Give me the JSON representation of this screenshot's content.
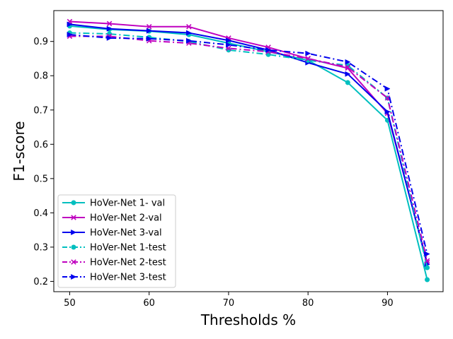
{
  "chart_data": {
    "type": "line",
    "title": "",
    "xlabel": "Thresholds %",
    "ylabel": "F1-score",
    "xlim": [
      48,
      97
    ],
    "ylim": [
      0.17,
      0.99
    ],
    "x_ticks": [
      50,
      60,
      70,
      80,
      90
    ],
    "y_ticks": [
      0.2,
      0.3,
      0.4,
      0.5,
      0.6,
      0.7,
      0.8,
      0.9
    ],
    "grid": false,
    "legend_position": "lower-left",
    "x": [
      50,
      55,
      60,
      65,
      70,
      75,
      80,
      85,
      90,
      95
    ],
    "series": [
      {
        "name": "HoVer-Net 1- val",
        "color": "#00bfbf",
        "marker": "circle",
        "linestyle": "solid",
        "values": [
          0.945,
          0.935,
          0.93,
          0.92,
          0.895,
          0.87,
          0.845,
          0.78,
          0.67,
          0.205
        ]
      },
      {
        "name": "HoVer-Net 2-val",
        "color": "#bf00bf",
        "marker": "x",
        "linestyle": "solid",
        "values": [
          0.958,
          0.952,
          0.943,
          0.943,
          0.91,
          0.883,
          0.85,
          0.822,
          0.69,
          0.255
        ]
      },
      {
        "name": "HoVer-Net 3-val",
        "color": "#0000ee",
        "marker": "triangle-right",
        "linestyle": "solid",
        "values": [
          0.95,
          0.937,
          0.931,
          0.925,
          0.903,
          0.875,
          0.838,
          0.805,
          0.695,
          0.25
        ]
      },
      {
        "name": "HoVer-Net 1-test",
        "color": "#00bfbf",
        "marker": "circle",
        "linestyle": "dashdot",
        "values": [
          0.925,
          0.922,
          0.912,
          0.9,
          0.875,
          0.862,
          0.845,
          0.83,
          0.735,
          0.24
        ]
      },
      {
        "name": "HoVer-Net 2-test",
        "color": "#bf00bf",
        "marker": "x",
        "linestyle": "dashdot",
        "values": [
          0.915,
          0.915,
          0.902,
          0.895,
          0.88,
          0.87,
          0.85,
          0.825,
          0.735,
          0.26
        ]
      },
      {
        "name": "HoVer-Net 3-test",
        "color": "#0000ee",
        "marker": "triangle-right",
        "linestyle": "dashdot",
        "values": [
          0.92,
          0.91,
          0.908,
          0.902,
          0.89,
          0.875,
          0.865,
          0.84,
          0.762,
          0.28
        ]
      }
    ]
  }
}
